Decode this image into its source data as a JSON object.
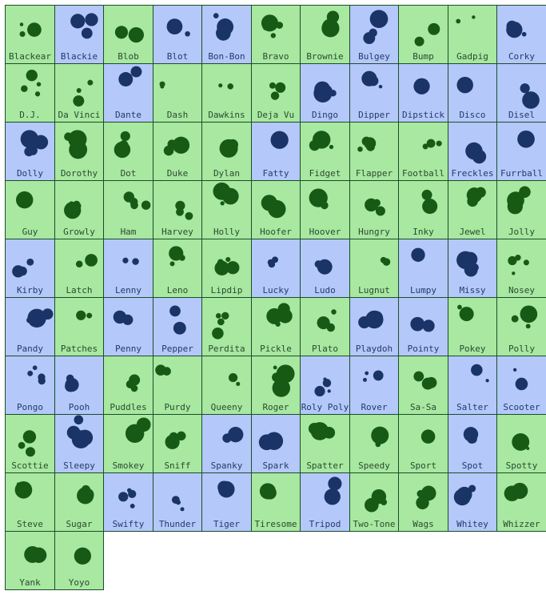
{
  "colors": {
    "green_bg": "#a8e8a0",
    "blue_bg": "#b4c8fa",
    "green_dot": "#165a16",
    "blue_dot": "#1a3468",
    "border": "#1a4d2a"
  },
  "cells": [
    {
      "name": "Blackear",
      "color": "green"
    },
    {
      "name": "Blackie",
      "color": "blue"
    },
    {
      "name": "Blob",
      "color": "green"
    },
    {
      "name": "Blot",
      "color": "blue"
    },
    {
      "name": "Bon-Bon",
      "color": "blue"
    },
    {
      "name": "Bravo",
      "color": "green"
    },
    {
      "name": "Brownie",
      "color": "green"
    },
    {
      "name": "Bulgey",
      "color": "blue"
    },
    {
      "name": "Bump",
      "color": "green"
    },
    {
      "name": "Gadpig",
      "color": "green"
    },
    {
      "name": "Corky",
      "color": "blue"
    },
    {
      "name": "D.J.",
      "color": "green"
    },
    {
      "name": "Da Vinci",
      "color": "green"
    },
    {
      "name": "Dante",
      "color": "blue"
    },
    {
      "name": "Dash",
      "color": "green"
    },
    {
      "name": "Dawkins",
      "color": "green"
    },
    {
      "name": "Deja Vu",
      "color": "green"
    },
    {
      "name": "Dingo",
      "color": "blue"
    },
    {
      "name": "Dipper",
      "color": "blue"
    },
    {
      "name": "Dipstick",
      "color": "blue"
    },
    {
      "name": "Disco",
      "color": "blue"
    },
    {
      "name": "Disel",
      "color": "blue"
    },
    {
      "name": "Dolly",
      "color": "blue"
    },
    {
      "name": "Dorothy",
      "color": "green"
    },
    {
      "name": "Dot",
      "color": "green"
    },
    {
      "name": "Duke",
      "color": "green"
    },
    {
      "name": "Dylan",
      "color": "green"
    },
    {
      "name": "Fatty",
      "color": "blue"
    },
    {
      "name": "Fidget",
      "color": "green"
    },
    {
      "name": "Flapper",
      "color": "green"
    },
    {
      "name": "Football",
      "color": "green"
    },
    {
      "name": "Freckles",
      "color": "blue"
    },
    {
      "name": "Furrball",
      "color": "blue"
    },
    {
      "name": "Guy",
      "color": "green"
    },
    {
      "name": "Growly",
      "color": "green"
    },
    {
      "name": "Ham",
      "color": "green"
    },
    {
      "name": "Harvey",
      "color": "green"
    },
    {
      "name": "Holly",
      "color": "green"
    },
    {
      "name": "Hoofer",
      "color": "green"
    },
    {
      "name": "Hoover",
      "color": "green"
    },
    {
      "name": "Hungry",
      "color": "green"
    },
    {
      "name": "Inky",
      "color": "green"
    },
    {
      "name": "Jewel",
      "color": "green"
    },
    {
      "name": "Jolly",
      "color": "green"
    },
    {
      "name": "Kirby",
      "color": "blue"
    },
    {
      "name": "Latch",
      "color": "green"
    },
    {
      "name": "Lenny",
      "color": "blue"
    },
    {
      "name": "Leno",
      "color": "green"
    },
    {
      "name": "Lipdip",
      "color": "green"
    },
    {
      "name": "Lucky",
      "color": "blue"
    },
    {
      "name": "Ludo",
      "color": "blue"
    },
    {
      "name": "Lugnut",
      "color": "green"
    },
    {
      "name": "Lumpy",
      "color": "blue"
    },
    {
      "name": "Missy",
      "color": "blue"
    },
    {
      "name": "Nosey",
      "color": "green"
    },
    {
      "name": "Pandy",
      "color": "blue"
    },
    {
      "name": "Patches",
      "color": "green"
    },
    {
      "name": "Penny",
      "color": "blue"
    },
    {
      "name": "Pepper",
      "color": "blue"
    },
    {
      "name": "Perdita",
      "color": "green"
    },
    {
      "name": "Pickle",
      "color": "green"
    },
    {
      "name": "Plato",
      "color": "green"
    },
    {
      "name": "Playdoh",
      "color": "blue"
    },
    {
      "name": "Pointy",
      "color": "blue"
    },
    {
      "name": "Pokey",
      "color": "green"
    },
    {
      "name": "Polly",
      "color": "green"
    },
    {
      "name": "Pongo",
      "color": "blue"
    },
    {
      "name": "Pooh",
      "color": "blue"
    },
    {
      "name": "Puddles",
      "color": "green"
    },
    {
      "name": "Purdy",
      "color": "green"
    },
    {
      "name": "Queeny",
      "color": "green"
    },
    {
      "name": "Roger",
      "color": "green"
    },
    {
      "name": "Roly Poly",
      "color": "blue"
    },
    {
      "name": "Rover",
      "color": "blue"
    },
    {
      "name": "Sa-Sa",
      "color": "green"
    },
    {
      "name": "Salter",
      "color": "blue"
    },
    {
      "name": "Scooter",
      "color": "blue"
    },
    {
      "name": "Scottie",
      "color": "green"
    },
    {
      "name": "Sleepy",
      "color": "blue"
    },
    {
      "name": "Smokey",
      "color": "green"
    },
    {
      "name": "Sniff",
      "color": "green"
    },
    {
      "name": "Spanky",
      "color": "blue"
    },
    {
      "name": "Spark",
      "color": "blue"
    },
    {
      "name": "Spatter",
      "color": "green"
    },
    {
      "name": "Speedy",
      "color": "green"
    },
    {
      "name": "Sport",
      "color": "green"
    },
    {
      "name": "Spot",
      "color": "blue"
    },
    {
      "name": "Spotty",
      "color": "green"
    },
    {
      "name": "Steve",
      "color": "green"
    },
    {
      "name": "Sugar",
      "color": "green"
    },
    {
      "name": "Swifty",
      "color": "blue"
    },
    {
      "name": "Thunder",
      "color": "blue"
    },
    {
      "name": "Tiger",
      "color": "blue"
    },
    {
      "name": "Tiresome",
      "color": "green"
    },
    {
      "name": "Tripod",
      "color": "blue"
    },
    {
      "name": "Two-Tone",
      "color": "green"
    },
    {
      "name": "Wags",
      "color": "green"
    },
    {
      "name": "Whitey",
      "color": "blue"
    },
    {
      "name": "Whizzer",
      "color": "green"
    },
    {
      "name": "Yank",
      "color": "green"
    },
    {
      "name": "Yoyo",
      "color": "green"
    }
  ]
}
